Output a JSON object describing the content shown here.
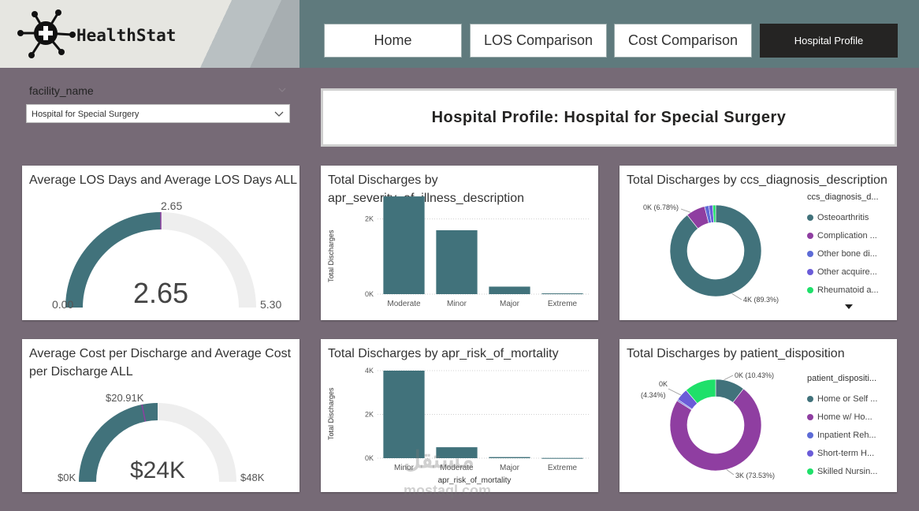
{
  "app": {
    "name": "HealthStat"
  },
  "nav": [
    {
      "label": "Home",
      "active": false
    },
    {
      "label": "LOS Comparison",
      "active": false
    },
    {
      "label": "Cost Comparison",
      "active": false
    },
    {
      "label": "Hospital Profile",
      "active": true
    }
  ],
  "slicer": {
    "label": "facility_name",
    "value": "Hospital for Special Surgery"
  },
  "page_title": "Hospital Profile: Hospital for Special Surgery",
  "cards": {
    "los": {
      "title": "Average LOS Days and Average LOS Days ALL",
      "value": "2.65",
      "min": "0.00",
      "max": "5.30",
      "target": "2.65",
      "fraction": 0.5
    },
    "severity": {
      "title_line1": "Total Discharges by",
      "title_line2": "apr_severity_of_illness_description",
      "ylabel": "Total Discharges"
    },
    "diagnosis": {
      "title": "Total Discharges by ccs_diagnosis_description",
      "label_small": "0K (6.78%)",
      "label_big": "4K (89.3%)"
    },
    "cost": {
      "title_line1": "Average Cost per Discharge and Average Cost",
      "title_line2": "per Discharge ALL",
      "value": "$24K",
      "min": "$0K",
      "max": "$48K",
      "target": "$20.91K",
      "fraction": 0.5,
      "target_fraction": 0.436
    },
    "mortality": {
      "title": "Total Discharges by apr_risk_of_mortality",
      "ylabel": "Total Discharges",
      "xlabel": "apr_risk_of_mortality"
    },
    "disposition": {
      "title": "Total Discharges by patient_disposition",
      "label_a": "0K (10.43%)",
      "label_b_line1": "0K",
      "label_b_line2": "(4.34%)",
      "label_big": "3K (73.53%)"
    }
  },
  "legend_diagnosis": {
    "title": "ccs_diagnosis_d...",
    "items": [
      {
        "label": "Osteoarthritis",
        "color": "#41727b"
      },
      {
        "label": "Complication ...",
        "color": "#8f3ea1"
      },
      {
        "label": "Other bone di...",
        "color": "#5d6bd6"
      },
      {
        "label": "Other acquire...",
        "color": "#6b5cd8"
      },
      {
        "label": "Rheumatoid a...",
        "color": "#1fe06a"
      }
    ]
  },
  "legend_disposition": {
    "title": "patient_dispositi...",
    "items": [
      {
        "label": "Home or Self ...",
        "color": "#41727b"
      },
      {
        "label": "Home w/ Ho...",
        "color": "#8f3ea1"
      },
      {
        "label": "Inpatient Reh...",
        "color": "#5d6bd6"
      },
      {
        "label": "Short-term H...",
        "color": "#6b5cd8"
      },
      {
        "label": "Skilled Nursin...",
        "color": "#1fe06a"
      }
    ]
  },
  "chart_data": [
    {
      "type": "bar",
      "title": "Total Discharges by apr_severity_of_illness_description",
      "ylabel": "Total Discharges",
      "categories": [
        "Moderate",
        "Minor",
        "Major",
        "Extreme"
      ],
      "values": [
        2600,
        1700,
        200,
        20
      ],
      "yticks": [
        "0K",
        "2K"
      ],
      "ylim": [
        0,
        3000
      ],
      "color": "#41727b"
    },
    {
      "type": "bar",
      "title": "Total Discharges by apr_risk_of_mortality",
      "ylabel": "Total Discharges",
      "xlabel": "apr_risk_of_mortality",
      "categories": [
        "Minor",
        "Moderate",
        "Major",
        "Extreme"
      ],
      "values": [
        4000,
        500,
        50,
        10
      ],
      "yticks": [
        "0K",
        "2K",
        "4K"
      ],
      "ylim": [
        0,
        4000
      ],
      "color": "#41727b"
    },
    {
      "type": "pie",
      "title": "Total Discharges by ccs_diagnosis_description",
      "slices": [
        {
          "label": "Osteoarthritis",
          "pct": 89.3,
          "color": "#41727b"
        },
        {
          "label": "Complication ...",
          "pct": 6.78,
          "color": "#8f3ea1"
        },
        {
          "label": "Other bone di...",
          "pct": 1.5,
          "color": "#5d6bd6"
        },
        {
          "label": "Other acquire...",
          "pct": 1.4,
          "color": "#6b5cd8"
        },
        {
          "label": "Rheumatoid a...",
          "pct": 1.02,
          "color": "#1fe06a"
        }
      ]
    },
    {
      "type": "pie",
      "title": "Total Discharges by patient_disposition",
      "slices": [
        {
          "label": "Home or Self ...",
          "pct": 10.43,
          "color": "#41727b"
        },
        {
          "label": "Home w/ Ho...",
          "pct": 73.53,
          "color": "#8f3ea1"
        },
        {
          "label": "Inpatient Reh...",
          "pct": 0.5,
          "color": "#5d6bd6"
        },
        {
          "label": "Short-term H...",
          "pct": 4.34,
          "color": "#6b5cd8"
        },
        {
          "label": "Skilled Nursin...",
          "pct": 11.2,
          "color": "#1fe06a"
        }
      ]
    }
  ],
  "watermark": {
    "line1": "مستقل",
    "line2": "mostaql.com"
  }
}
